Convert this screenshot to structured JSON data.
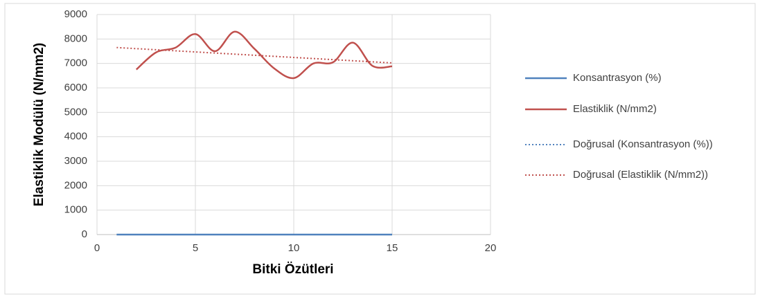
{
  "chart_data": {
    "type": "line",
    "xlabel": "Bitki Özütleri",
    "ylabel": "Elastiklik Modülü (N/mm2)",
    "xlim": [
      0,
      20
    ],
    "xticks": [
      0,
      5,
      10,
      15,
      20
    ],
    "ylim": [
      0,
      9000
    ],
    "yticks": [
      0,
      1000,
      2000,
      3000,
      4000,
      5000,
      6000,
      7000,
      8000,
      9000
    ],
    "grid": true,
    "legend": "right",
    "series": [
      {
        "name": "Konsantrasyon (%)",
        "color": "#4f81bd",
        "dashed": false,
        "x": [
          1,
          2,
          3,
          4,
          5,
          6,
          7,
          8,
          9,
          10,
          11,
          12,
          13,
          14,
          15
        ],
        "values": [
          0,
          0,
          0,
          0,
          0,
          0,
          0,
          0,
          0,
          0,
          0,
          0,
          0,
          0,
          0
        ]
      },
      {
        "name": "Elastiklik (N/mm2)",
        "color": "#c0504d",
        "dashed": false,
        "x": [
          2,
          3,
          4,
          5,
          6,
          7,
          8,
          9,
          10,
          11,
          12,
          13,
          14,
          15
        ],
        "values": [
          6750,
          7450,
          7650,
          8200,
          7500,
          8300,
          7600,
          6800,
          6400,
          7000,
          7050,
          7850,
          6900,
          6880
        ]
      },
      {
        "name": "Doğrusal (Konsantrasyon (%))",
        "color": "#4f81bd",
        "dashed": true,
        "x": [
          1,
          15
        ],
        "values": [
          0,
          0
        ]
      },
      {
        "name": "Doğrusal (Elastiklik (N/mm2))",
        "color": "#c0504d",
        "dashed": true,
        "x": [
          1,
          15
        ],
        "values": [
          7650,
          7020
        ]
      }
    ]
  }
}
